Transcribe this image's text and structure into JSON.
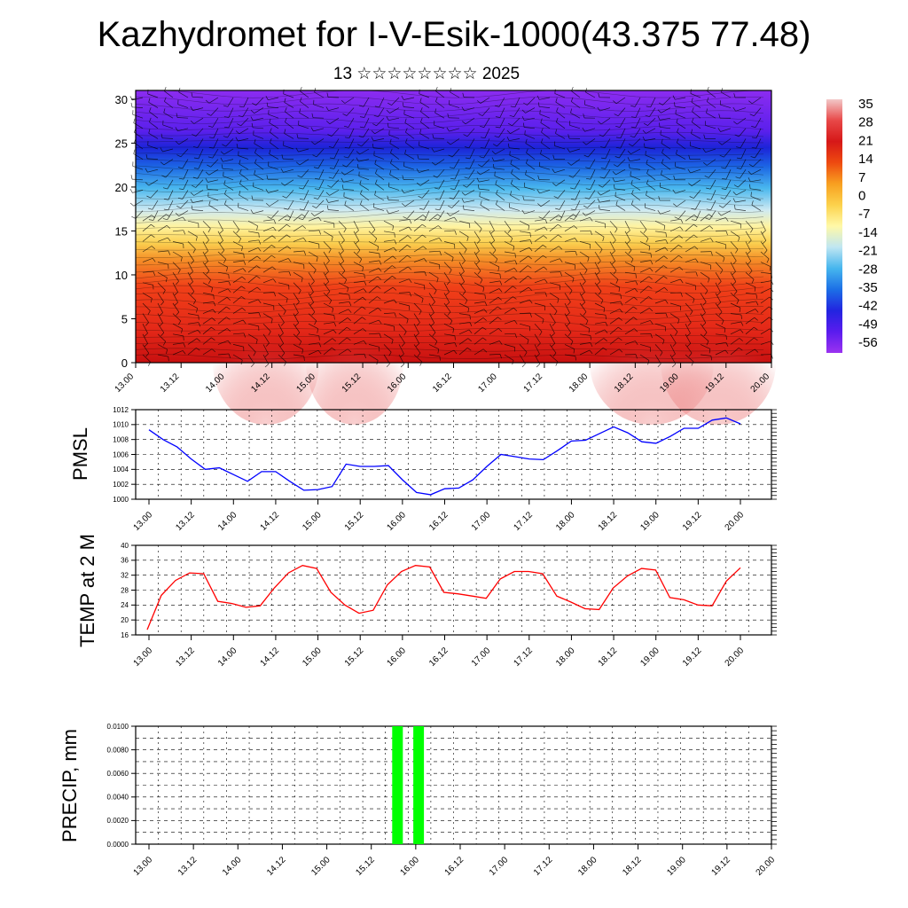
{
  "title": "Kazhydromet for I-V-Esik-1000(43.375 77.48)",
  "subtitle": "13 ☆☆☆☆☆☆☆☆ 2025",
  "x_ticks": [
    "13.00",
    "13.12",
    "14.00",
    "14.12",
    "15.00",
    "15.12",
    "16.00",
    "16.12",
    "17.00",
    "17.12",
    "18.00",
    "18.12",
    "19.00",
    "19.12",
    "20.00"
  ],
  "colors": {
    "pmsl_line": "#0000ff",
    "temp_line": "#ff0000",
    "precip_bar": "#00ff00",
    "colorbar": [
      "#f2c8c8",
      "#e84848",
      "#d61818",
      "#ee4a10",
      "#f8a020",
      "#fcd24c",
      "#fff9a8",
      "#bfe6f2",
      "#46b6ee",
      "#1c6fe6",
      "#2224e0",
      "#5a1cee",
      "#9b32f0"
    ]
  },
  "chart_data": [
    {
      "id": "cross_section",
      "type": "heatmap",
      "ylabel": "",
      "ylim": [
        0,
        31
      ],
      "y_ticks": [
        0,
        5,
        10,
        15,
        20,
        25,
        30
      ],
      "colorbar_labels": [
        "35",
        "28",
        "21",
        "14",
        "7",
        "0",
        "-7",
        "-14",
        "-21",
        "-28",
        "-35",
        "-42",
        "-49",
        "-56"
      ],
      "colorbar_range": [
        -60,
        40
      ]
    },
    {
      "id": "pmsl",
      "type": "line",
      "ylabel": "PMSL",
      "ylim": [
        1000,
        1012
      ],
      "y_ticks": [
        "1000",
        "1002",
        "1004",
        "1006",
        "1008",
        "1010",
        "1012"
      ],
      "x": [
        0,
        2,
        4,
        6,
        8,
        10,
        12,
        14,
        16,
        18,
        20,
        22,
        24,
        26,
        28,
        30,
        32,
        34,
        36,
        38,
        40,
        42,
        44,
        46,
        48,
        50,
        52,
        54,
        56,
        58,
        60,
        62,
        64,
        66,
        68,
        70,
        72,
        74,
        76,
        78,
        80,
        82,
        84
      ],
      "values": [
        1009.3,
        1008.0,
        1007.0,
        1005.4,
        1004.0,
        1004.2,
        1003.3,
        1002.4,
        1003.7,
        1003.7,
        1002.4,
        1001.2,
        1001.3,
        1001.7,
        1004.7,
        1004.4,
        1004.4,
        1004.5,
        1002.6,
        1000.9,
        1000.6,
        1001.4,
        1001.5,
        1002.6,
        1004.4,
        1006.0,
        1005.7,
        1005.4,
        1005.3,
        1006.5,
        1007.8,
        1007.9,
        1008.8,
        1009.7,
        1008.9,
        1007.7,
        1007.5,
        1008.4,
        1009.5,
        1009.5,
        1010.6,
        1010.9,
        1010.1
      ]
    },
    {
      "id": "temp",
      "type": "line",
      "ylabel": "TEMP at 2 M",
      "ylim": [
        16,
        40
      ],
      "y_ticks": [
        "16",
        "20",
        "24",
        "28",
        "32",
        "36",
        "40"
      ],
      "x": [
        0,
        2,
        4,
        6,
        8,
        10,
        12,
        14,
        16,
        18,
        20,
        22,
        24,
        26,
        28,
        30,
        32,
        34,
        36,
        38,
        40,
        42,
        44,
        46,
        48,
        50,
        52,
        54,
        56,
        58,
        60,
        62,
        64,
        66,
        68,
        70,
        72,
        74,
        76,
        78,
        80,
        82,
        84
      ],
      "values": [
        17.4,
        26.6,
        30.6,
        32.6,
        32.4,
        25.0,
        24.4,
        23.4,
        23.8,
        28.6,
        32.6,
        34.6,
        33.8,
        27.4,
        24.0,
        21.8,
        22.6,
        29.4,
        33.0,
        34.6,
        34.2,
        27.4,
        27.0,
        26.4,
        25.8,
        31.0,
        33.0,
        33.0,
        32.4,
        26.4,
        24.8,
        23.0,
        22.8,
        28.6,
        31.8,
        33.8,
        33.4,
        26.0,
        25.4,
        24.0,
        23.8,
        30.4,
        34.0
      ]
    },
    {
      "id": "precip",
      "type": "bar",
      "ylabel": "PRECIP, mm",
      "ylim": [
        0,
        0.01
      ],
      "y_ticks": [
        "0.0000",
        "0.0020",
        "0.0040",
        "0.0060",
        "0.0080",
        "0.0100"
      ],
      "x": [
        35.3,
        38.3
      ],
      "values": [
        0.01,
        0.01
      ]
    }
  ]
}
